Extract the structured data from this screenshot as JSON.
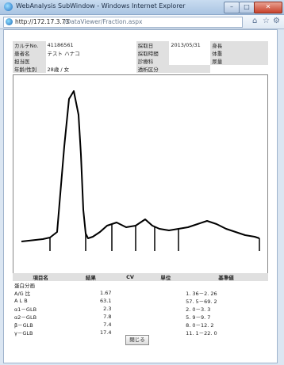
{
  "window": {
    "title": "WebAnalysis SubWindow - Windows Internet Explorer"
  },
  "address": {
    "host": "http://172.17.3.73",
    "path": "/DataViewer/Fraction.aspx"
  },
  "patient": {
    "karte_no_label": "カルテNo.",
    "karte_no": "41186561",
    "name_label": "患者名",
    "name": "テスト ハナコ",
    "doctor_label": "担当医",
    "age_sex_label": "年齢/性別",
    "age_sex": "28歳 / 女",
    "date_label": "採取日",
    "date": "2013/05/31",
    "time_label": "採取時間",
    "dept_label": "診療科",
    "dialysis_label": "透析区分",
    "height_label": "身長",
    "weight_label": "体重",
    "urine_label": "尿量"
  },
  "chart_data": {
    "type": "line",
    "title": "",
    "x": [
      0,
      3,
      6,
      9,
      12,
      15,
      18,
      20,
      22,
      24,
      25,
      26,
      27,
      28,
      30,
      33,
      36,
      40,
      44,
      48,
      52,
      55,
      58,
      62,
      66,
      70,
      74,
      78,
      82,
      86,
      90,
      94,
      98,
      100
    ],
    "y": [
      0,
      0.5,
      1,
      1.5,
      2.5,
      6,
      60,
      90,
      95,
      80,
      55,
      20,
      5,
      2,
      3,
      6,
      10,
      12,
      9,
      10,
      14,
      10,
      8,
      7,
      8,
      9,
      11,
      13,
      11,
      8,
      6,
      4,
      3,
      2
    ],
    "fraction_marks": [
      12,
      27,
      38,
      48,
      56,
      66,
      100
    ]
  },
  "results": {
    "headers": [
      "項目名",
      "結果",
      "CV",
      "単位",
      "基準値"
    ],
    "group_label": "蛋白分画",
    "rows": [
      {
        "name": "A/G 比",
        "result": "1.67",
        "ref": "1. 36－2. 26"
      },
      {
        "name": "A L B",
        "result": "63.1",
        "ref": "57. 5－69. 2"
      },
      {
        "name": "α1－GLB",
        "result": "2.3",
        "ref": "2. 0－3. 3"
      },
      {
        "name": "α2－GLB",
        "result": "7.8",
        "ref": "5. 9－9. 7"
      },
      {
        "name": "β－GLB",
        "result": "7.4",
        "ref": "8. 0－12. 2"
      },
      {
        "name": "γ－GLB",
        "result": "17.4",
        "ref": "11. 1－22. 0"
      }
    ]
  },
  "buttons": {
    "close": "閉じる"
  }
}
